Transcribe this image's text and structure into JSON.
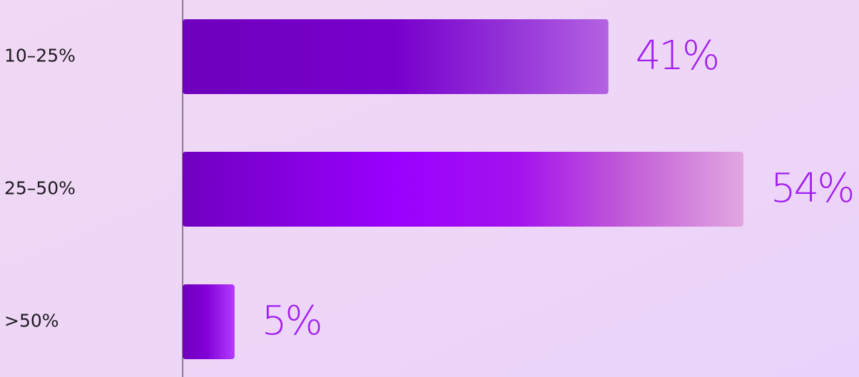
{
  "chart_data": {
    "type": "hbar",
    "categories": [
      "10–25%",
      "25–50%",
      ">50%"
    ],
    "values": [
      41,
      54,
      5
    ],
    "value_labels": [
      "41%",
      "54%",
      "5%"
    ]
  }
}
